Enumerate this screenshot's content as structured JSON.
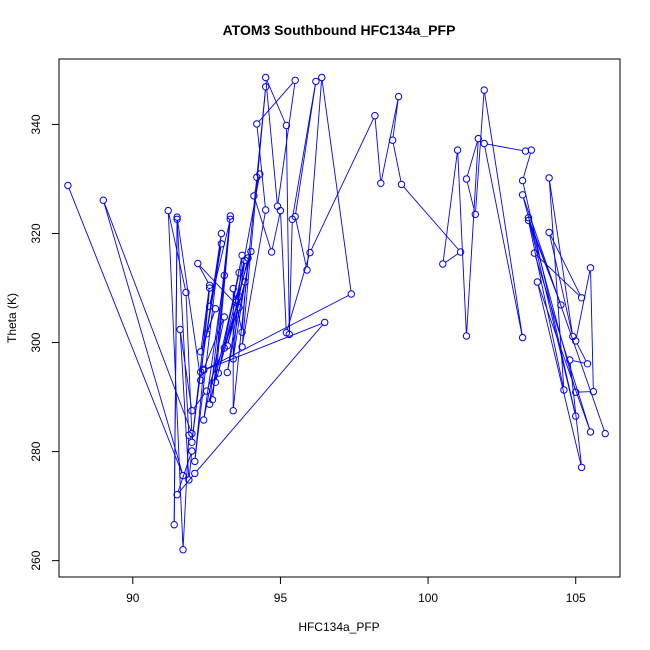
{
  "chart_data": {
    "type": "scatter",
    "title": "ATOM3 Southbound HFC134a_PFP",
    "xlabel": "HFC134a_PFP",
    "ylabel": "Theta (K)",
    "xlim": [
      87.5,
      106.5
    ],
    "ylim": [
      257,
      352
    ],
    "xticks": [
      90,
      95,
      100,
      105
    ],
    "yticks": [
      260,
      280,
      300,
      320,
      340
    ],
    "series_color": "#0000ff",
    "connect_points": true,
    "marker": "open-circle",
    "series": [
      {
        "points": [
          [
            87.8,
            328.8
          ],
          [
            91.7,
            275.6
          ],
          [
            89.0,
            326.1
          ],
          [
            92.0,
            283.3
          ],
          [
            91.8,
            309.2
          ],
          [
            91.2,
            324.2
          ],
          [
            91.7,
            262.0
          ],
          [
            91.9,
            283.0
          ],
          [
            91.5,
            322.6
          ],
          [
            91.4,
            266.6
          ],
          [
            91.5,
            323.0
          ],
          [
            92.3,
            293.1
          ],
          [
            92.6,
            310.0
          ],
          [
            92.0,
            281.7
          ],
          [
            92.3,
            294.6
          ],
          [
            93.0,
            320.0
          ],
          [
            92.1,
            278.2
          ],
          [
            92.4,
            295.1
          ],
          [
            93.1,
            304.7
          ],
          [
            92.4,
            285.8
          ],
          [
            93.1,
            312.3
          ],
          [
            92.7,
            289.5
          ],
          [
            93.3,
            323.2
          ],
          [
            92.6,
            288.7
          ],
          [
            93.6,
            312.8
          ],
          [
            92.9,
            294.4
          ],
          [
            93.7,
            316.0
          ],
          [
            93.4,
            297.0
          ],
          [
            93.8,
            311.1
          ],
          [
            93.2,
            299.4
          ],
          [
            93.9,
            315.5
          ],
          [
            93.7,
            301.9
          ],
          [
            93.4,
            309.9
          ],
          [
            93.4,
            287.5
          ],
          [
            94.2,
            330.3
          ],
          [
            94.5,
            346.9
          ],
          [
            93.7,
            299.2
          ],
          [
            94.5,
            324.3
          ],
          [
            94.2,
            340.1
          ],
          [
            95.5,
            348.1
          ],
          [
            94.9,
            325.0
          ],
          [
            94.5,
            348.6
          ],
          [
            95.2,
            339.8
          ],
          [
            95.3,
            301.5
          ],
          [
            95.4,
            322.6
          ],
          [
            96.2,
            347.9
          ],
          [
            95.5,
            323.1
          ],
          [
            95.9,
            313.3
          ],
          [
            96.4,
            348.6
          ],
          [
            97.4,
            308.9
          ],
          [
            92.4,
            294.9
          ],
          [
            96.5,
            303.7
          ],
          [
            92.1,
            276.0
          ],
          [
            91.5,
            272.1
          ],
          [
            92.0,
            280.1
          ],
          [
            91.9,
            274.8
          ],
          [
            91.6,
            302.4
          ],
          [
            92.0,
            287.5
          ],
          [
            92.5,
            291.1
          ],
          [
            93.6,
            306.4
          ],
          [
            92.2,
            314.5
          ],
          [
            92.6,
            310.5
          ],
          [
            92.3,
            298.3
          ],
          [
            92.8,
            306.2
          ],
          [
            92.5,
            301.6
          ],
          [
            93.0,
            318.1
          ],
          [
            92.6,
            306.6
          ],
          [
            93.3,
            322.6
          ],
          [
            92.8,
            292.7
          ],
          [
            93.6,
            308.4
          ],
          [
            93.1,
            299.0
          ],
          [
            93.8,
            315.1
          ],
          [
            93.2,
            294.5
          ],
          [
            94.0,
            316.7
          ],
          [
            93.5,
            307.4
          ],
          [
            94.3,
            330.9
          ],
          [
            94.1,
            326.9
          ],
          [
            94.7,
            316.6
          ],
          [
            95.0,
            324.2
          ],
          [
            95.2,
            301.8
          ],
          [
            96.0,
            316.5
          ],
          [
            98.2,
            341.6
          ],
          [
            98.4,
            329.2
          ],
          [
            99.0,
            345.1
          ],
          [
            98.8,
            337.1
          ],
          [
            99.1,
            329.0
          ],
          [
            101.1,
            316.6
          ],
          [
            100.5,
            314.4
          ],
          [
            101.0,
            335.3
          ],
          [
            101.3,
            301.2
          ],
          [
            101.7,
            337.4
          ],
          [
            101.3,
            330.0
          ],
          [
            101.6,
            323.5
          ],
          [
            101.9,
            346.3
          ],
          [
            103.2,
            300.9
          ],
          [
            101.9,
            336.5
          ],
          [
            103.3,
            335.1
          ],
          [
            103.5,
            335.3
          ],
          [
            103.2,
            329.7
          ],
          [
            105.0,
            286.5
          ],
          [
            103.4,
            322.9
          ],
          [
            104.5,
            306.9
          ],
          [
            103.4,
            322.4
          ],
          [
            104.6,
            291.3
          ],
          [
            104.1,
            330.2
          ],
          [
            104.9,
            301.1
          ],
          [
            104.1,
            320.2
          ],
          [
            105.2,
            308.2
          ],
          [
            103.6,
            316.4
          ],
          [
            105.5,
            283.6
          ],
          [
            103.7,
            311.1
          ],
          [
            105.2,
            277.1
          ],
          [
            104.8,
            296.8
          ],
          [
            105.4,
            296.1
          ],
          [
            105.0,
            300.3
          ],
          [
            105.5,
            313.7
          ],
          [
            105.6,
            291.0
          ],
          [
            105.0,
            290.9
          ],
          [
            103.2,
            327.1
          ],
          [
            106.0,
            283.3
          ]
        ]
      }
    ]
  }
}
